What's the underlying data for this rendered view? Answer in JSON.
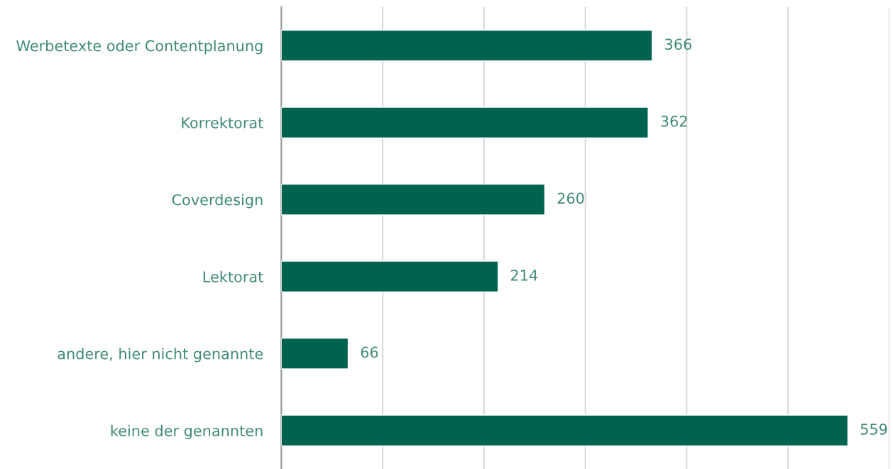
{
  "chart_data": {
    "type": "bar",
    "orientation": "horizontal",
    "categories": [
      "Werbetexte oder Contentplanung",
      "Korrektorat",
      "Coverdesign",
      "Lektorat",
      "andere, hier nicht genannte",
      "keine der genannten"
    ],
    "values": [
      366,
      362,
      260,
      214,
      66,
      559
    ],
    "color": "#00634f",
    "xlim": [
      0,
      600
    ],
    "xticks": [
      {
        "value": 0,
        "label": null
      },
      {
        "value": 100,
        "label": null
      },
      {
        "value": 200,
        "label": null
      },
      {
        "value": 300,
        "label": null
      },
      {
        "value": 400,
        "label": null
      },
      {
        "value": 500,
        "label": null
      },
      {
        "value": 600,
        "label": null
      }
    ],
    "grid": "x",
    "data_labels": true,
    "tick_labels": "y"
  }
}
